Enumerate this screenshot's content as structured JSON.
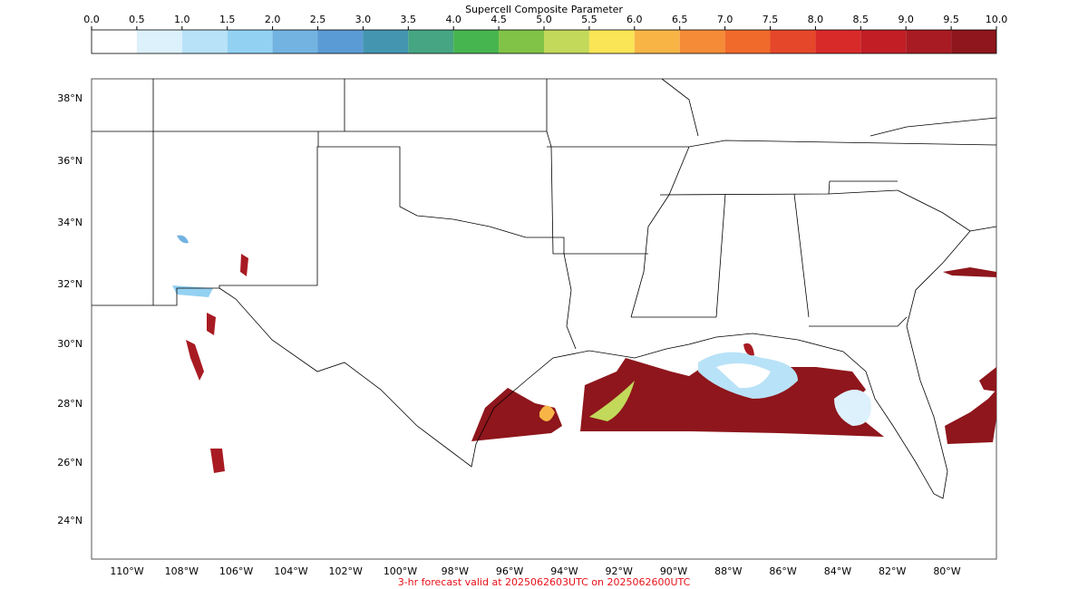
{
  "colorbar": {
    "title": "Supercell Composite Parameter",
    "ticks": [
      {
        "value": 0,
        "label": "0.0"
      },
      {
        "value": 0.5,
        "label": "0.5"
      },
      {
        "value": 1,
        "label": "1.0"
      },
      {
        "value": 1.5,
        "label": "1.5"
      },
      {
        "value": 2,
        "label": "2.0"
      },
      {
        "value": 2.5,
        "label": "2.5"
      },
      {
        "value": 3,
        "label": "3.0"
      },
      {
        "value": 3.5,
        "label": "3.5"
      },
      {
        "value": 4,
        "label": "4.0"
      },
      {
        "value": 4.5,
        "label": "4.5"
      },
      {
        "value": 5,
        "label": "5.0"
      },
      {
        "value": 5.5,
        "label": "5.5"
      },
      {
        "value": 6,
        "label": "6.0"
      },
      {
        "value": 6.5,
        "label": "6.5"
      },
      {
        "value": 7,
        "label": "7.0"
      },
      {
        "value": 7.5,
        "label": "7.5"
      },
      {
        "value": 8,
        "label": "8.0"
      },
      {
        "value": 8.5,
        "label": "8.5"
      },
      {
        "value": 9,
        "label": "9.0"
      },
      {
        "value": 9.5,
        "label": "9.5"
      },
      {
        "value": 10,
        "label": "10.0"
      }
    ],
    "colors": [
      "#ffffff",
      "#ddf1fc",
      "#b8e2f7",
      "#93d1f2",
      "#73b3e1",
      "#5b9bd5",
      "#4496b0",
      "#46a582",
      "#47b54f",
      "#80c347",
      "#c2d95a",
      "#f9e556",
      "#f8b546",
      "#f58b36",
      "#f06a2b",
      "#e5472a",
      "#d92a2a",
      "#c11e26",
      "#a81b22",
      "#8e161c"
    ]
  },
  "map": {
    "lat_labels": [
      "38°N",
      "36°N",
      "34°N",
      "32°N",
      "30°N",
      "28°N",
      "26°N",
      "24°N"
    ],
    "lon_labels": [
      "110°W",
      "108°W",
      "106°W",
      "104°W",
      "102°W",
      "100°W",
      "98°W",
      "96°W",
      "94°W",
      "92°W",
      "90°W",
      "88°W",
      "86°W",
      "84°W",
      "82°W",
      "80°W"
    ]
  },
  "caption": "3-hr forecast valid at 2025062603UTC on 2025062600UTC"
}
